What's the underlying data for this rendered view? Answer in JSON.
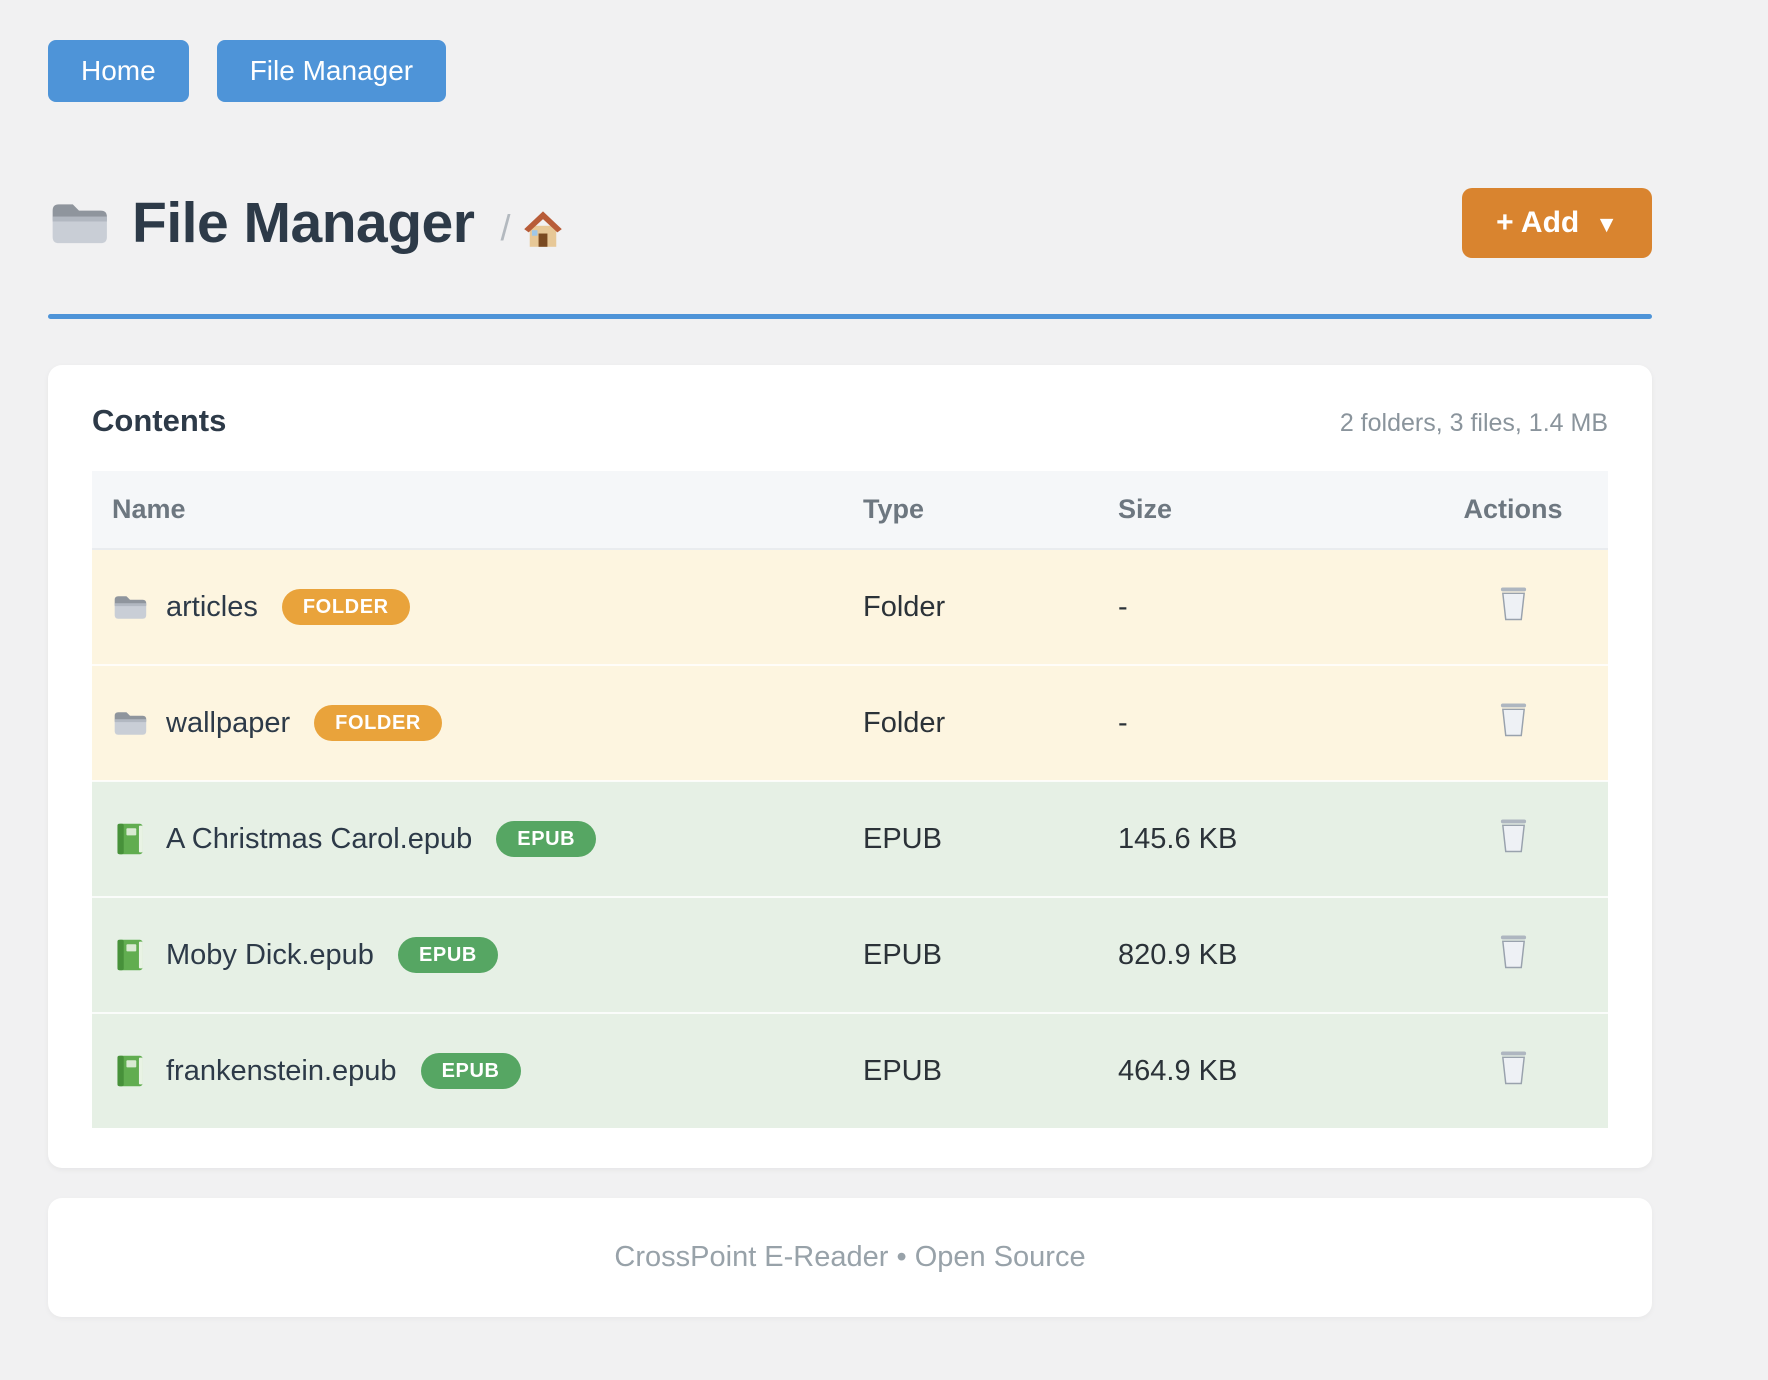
{
  "nav": {
    "home_label": "Home",
    "file_manager_label": "File Manager"
  },
  "header": {
    "title_icon": "folder",
    "title": "File Manager",
    "breadcrumb": {
      "separator": "/",
      "home_icon": "house"
    },
    "add_button": {
      "label": "+ Add",
      "caret": "▼"
    }
  },
  "contents": {
    "title": "Contents",
    "summary": "2 folders, 3 files, 1.4 MB",
    "table": {
      "headers": [
        "Name",
        "Type",
        "Size",
        "Actions"
      ],
      "rows": [
        {
          "icon": "folder",
          "name": "articles",
          "badge": "FOLDER",
          "type": "Folder",
          "size": "-",
          "action_icon": "trash"
        },
        {
          "icon": "folder",
          "name": "wallpaper",
          "badge": "FOLDER",
          "type": "Folder",
          "size": "-",
          "action_icon": "trash"
        },
        {
          "icon": "book",
          "name": "A Christmas Carol.epub",
          "badge": "EPUB",
          "type": "EPUB",
          "size": "145.6 KB",
          "action_icon": "trash"
        },
        {
          "icon": "book",
          "name": "Moby Dick.epub",
          "badge": "EPUB",
          "type": "EPUB",
          "size": "820.9 KB",
          "action_icon": "trash"
        },
        {
          "icon": "book",
          "name": "frankenstein.epub",
          "badge": "EPUB",
          "type": "EPUB",
          "size": "464.9 KB",
          "action_icon": "trash"
        }
      ]
    }
  },
  "footer": {
    "text": "CrossPoint E-Reader • Open Source"
  },
  "colors": {
    "nav_button": "#4e94d8",
    "add_button": "#d9842f",
    "divider": "#4e94d8",
    "folder_badge": "#e9a33b",
    "epub_badge": "#56a663",
    "folder_row_bg": "#fdf5e0",
    "epub_row_bg": "#e6f0e5"
  }
}
